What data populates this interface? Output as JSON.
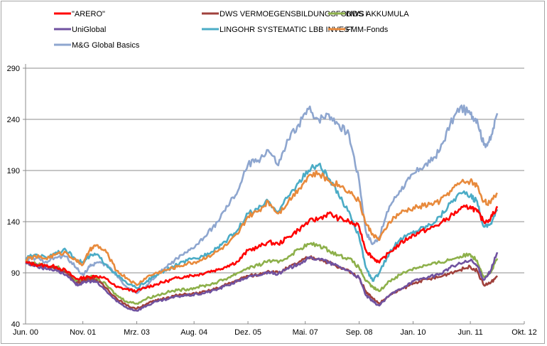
{
  "chart_data": {
    "type": "line",
    "title": "",
    "xlabel": "",
    "ylabel": "",
    "ylim": [
      40,
      290
    ],
    "yticks": [
      40,
      90,
      140,
      190,
      240,
      290
    ],
    "xlim_months": [
      0,
      148
    ],
    "xticks": [
      {
        "label": "Jun. 00",
        "month": 0
      },
      {
        "label": "Nov. 01",
        "month": 17
      },
      {
        "label": "Mrz. 03",
        "month": 33
      },
      {
        "label": "Aug. 04",
        "month": 50
      },
      {
        "label": "Dez. 05",
        "month": 66
      },
      {
        "label": "Mai. 07",
        "month": 83
      },
      {
        "label": "Sep. 08",
        "month": 99
      },
      {
        "label": "Jan. 10",
        "month": 115
      },
      {
        "label": "Jun. 11",
        "month": 132
      },
      {
        "label": "Okt. 12",
        "month": 148
      }
    ],
    "grid": "horizontal",
    "legend_position": "top",
    "x_months": [
      0,
      3,
      6,
      9,
      12,
      15,
      17,
      19,
      21,
      24,
      27,
      30,
      33,
      36,
      39,
      42,
      45,
      48,
      51,
      54,
      57,
      60,
      63,
      66,
      69,
      72,
      75,
      78,
      81,
      84,
      87,
      90,
      93,
      96,
      99,
      101,
      103,
      105,
      108,
      111,
      114,
      117,
      120,
      123,
      126,
      129,
      132,
      134,
      136,
      138,
      140
    ],
    "series": [
      {
        "name": "\"ARERO\"",
        "color": "#ff0000",
        "values": [
          100,
          98,
          97,
          96,
          92,
          84,
          85,
          86,
          87,
          84,
          76,
          74,
          72,
          76,
          79,
          82,
          85,
          87,
          88,
          91,
          93,
          97,
          101,
          112,
          115,
          120,
          118,
          125,
          132,
          140,
          143,
          148,
          143,
          140,
          135,
          112,
          105,
          100,
          110,
          118,
          125,
          130,
          133,
          138,
          145,
          152,
          155,
          150,
          140,
          143,
          155
        ]
      },
      {
        "name": "DWS VERMOEGENSBILDUNGSFONDS  I",
        "color": "#a0413c",
        "values": [
          100,
          98,
          96,
          95,
          90,
          80,
          82,
          84,
          83,
          75,
          65,
          58,
          55,
          60,
          63,
          66,
          68,
          69,
          70,
          72,
          75,
          79,
          83,
          87,
          88,
          92,
          90,
          95,
          100,
          105,
          104,
          100,
          95,
          92,
          85,
          72,
          65,
          60,
          68,
          73,
          78,
          82,
          84,
          86,
          90,
          93,
          96,
          92,
          78,
          80,
          87
        ]
      },
      {
        "name": "DWS AKKUMULA",
        "color": "#8db04a",
        "values": [
          100,
          99,
          97,
          96,
          92,
          82,
          84,
          86,
          85,
          78,
          68,
          62,
          60,
          65,
          68,
          71,
          73,
          74,
          76,
          78,
          81,
          85,
          90,
          95,
          97,
          102,
          100,
          106,
          113,
          118,
          117,
          112,
          107,
          104,
          95,
          82,
          76,
          72,
          82,
          88,
          93,
          96,
          98,
          100,
          103,
          106,
          108,
          102,
          86,
          90,
          104
        ]
      },
      {
        "name": "UniGlobal",
        "color": "#7052a0",
        "values": [
          100,
          97,
          94,
          93,
          88,
          78,
          80,
          82,
          81,
          72,
          62,
          56,
          53,
          58,
          62,
          64,
          67,
          68,
          69,
          71,
          74,
          78,
          82,
          86,
          87,
          91,
          89,
          94,
          99,
          104,
          104,
          100,
          96,
          92,
          85,
          68,
          62,
          58,
          68,
          74,
          80,
          84,
          86,
          89,
          95,
          99,
          102,
          97,
          83,
          92,
          110
        ]
      },
      {
        "name": "LINGOHR SYSTEMATIC  LBB INVEST",
        "color": "#4bacc6",
        "values": [
          104,
          108,
          105,
          110,
          112,
          103,
          100,
          106,
          108,
          98,
          88,
          80,
          75,
          82,
          88,
          93,
          98,
          102,
          104,
          109,
          115,
          123,
          132,
          148,
          152,
          160,
          150,
          165,
          178,
          190,
          196,
          182,
          165,
          150,
          125,
          95,
          82,
          90,
          110,
          122,
          128,
          133,
          137,
          145,
          158,
          168,
          165,
          160,
          135,
          138,
          152
        ]
      },
      {
        "name": "FMM-Fonds",
        "color": "#e88a3c",
        "values": [
          103,
          106,
          104,
          108,
          110,
          102,
          98,
          112,
          117,
          110,
          92,
          85,
          78,
          86,
          90,
          93,
          96,
          99,
          101,
          106,
          111,
          118,
          128,
          145,
          150,
          160,
          148,
          160,
          172,
          185,
          187,
          180,
          176,
          170,
          160,
          138,
          128,
          122,
          140,
          148,
          152,
          155,
          157,
          160,
          170,
          178,
          180,
          175,
          160,
          158,
          168
        ]
      },
      {
        "name": "M&G Global Basics",
        "color": "#8ea6cf",
        "values": [
          103,
          104,
          101,
          105,
          106,
          95,
          88,
          96,
          100,
          98,
          88,
          76,
          70,
          78,
          88,
          96,
          104,
          110,
          118,
          128,
          140,
          155,
          170,
          196,
          200,
          210,
          195,
          220,
          235,
          250,
          240,
          245,
          235,
          225,
          180,
          130,
          118,
          125,
          155,
          170,
          182,
          192,
          198,
          210,
          235,
          252,
          245,
          240,
          215,
          220,
          246
        ]
      }
    ]
  }
}
